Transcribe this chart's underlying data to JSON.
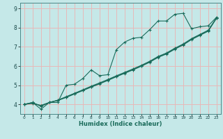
{
  "xlabel": "Humidex (Indice chaleur)",
  "bg_color": "#c5e8e8",
  "grid_color": "#e8b8b8",
  "line_color": "#1a6b5a",
  "spine_color": "#4a8888",
  "xlim": [
    -0.5,
    23.5
  ],
  "ylim": [
    3.5,
    9.3
  ],
  "yticks": [
    4,
    5,
    6,
    7,
    8,
    9
  ],
  "xticks": [
    0,
    1,
    2,
    3,
    4,
    5,
    6,
    7,
    8,
    9,
    10,
    11,
    12,
    13,
    14,
    15,
    16,
    17,
    18,
    19,
    20,
    21,
    22,
    23
  ],
  "line1_x": [
    0,
    1,
    2,
    3,
    4,
    5,
    6,
    7,
    8,
    9,
    10,
    11,
    12,
    13,
    14,
    15,
    16,
    17,
    18,
    19,
    20,
    21,
    22,
    23
  ],
  "line1_y": [
    4.0,
    4.1,
    3.75,
    4.1,
    4.1,
    5.0,
    5.05,
    5.35,
    5.8,
    5.5,
    5.55,
    6.85,
    7.25,
    7.45,
    7.5,
    7.9,
    8.35,
    8.35,
    8.7,
    8.75,
    7.95,
    8.05,
    8.1,
    8.55
  ],
  "line2_x": [
    0,
    1,
    2,
    3,
    4,
    5,
    6,
    7,
    8,
    9,
    10,
    11,
    12,
    13,
    14,
    15,
    16,
    17,
    18,
    19,
    20,
    21,
    22,
    23
  ],
  "line2_y": [
    4.0,
    4.1,
    3.9,
    4.1,
    4.2,
    4.36,
    4.54,
    4.72,
    4.9,
    5.07,
    5.25,
    5.44,
    5.62,
    5.8,
    5.99,
    6.2,
    6.45,
    6.63,
    6.88,
    7.1,
    7.38,
    7.6,
    7.82,
    8.5
  ],
  "line3_x": [
    0,
    1,
    2,
    3,
    4,
    5,
    6,
    7,
    8,
    9,
    10,
    11,
    12,
    13,
    14,
    15,
    16,
    17,
    18,
    19,
    20,
    21,
    22,
    23
  ],
  "line3_y": [
    4.0,
    4.05,
    3.95,
    4.1,
    4.22,
    4.4,
    4.58,
    4.76,
    4.95,
    5.12,
    5.3,
    5.49,
    5.67,
    5.85,
    6.04,
    6.25,
    6.5,
    6.68,
    6.93,
    7.15,
    7.43,
    7.65,
    7.87,
    8.52
  ],
  "line4_x": [
    0,
    1,
    2,
    3,
    4,
    5,
    6,
    7,
    8,
    9,
    10,
    11,
    12,
    13,
    14,
    15,
    16,
    17,
    18,
    19,
    20,
    21,
    22,
    23
  ],
  "line4_y": [
    4.0,
    4.08,
    3.92,
    4.1,
    4.21,
    4.38,
    4.56,
    4.74,
    4.92,
    5.09,
    5.27,
    5.46,
    5.64,
    5.82,
    6.01,
    6.22,
    6.47,
    6.65,
    6.9,
    7.12,
    7.4,
    7.62,
    7.84,
    8.51
  ]
}
